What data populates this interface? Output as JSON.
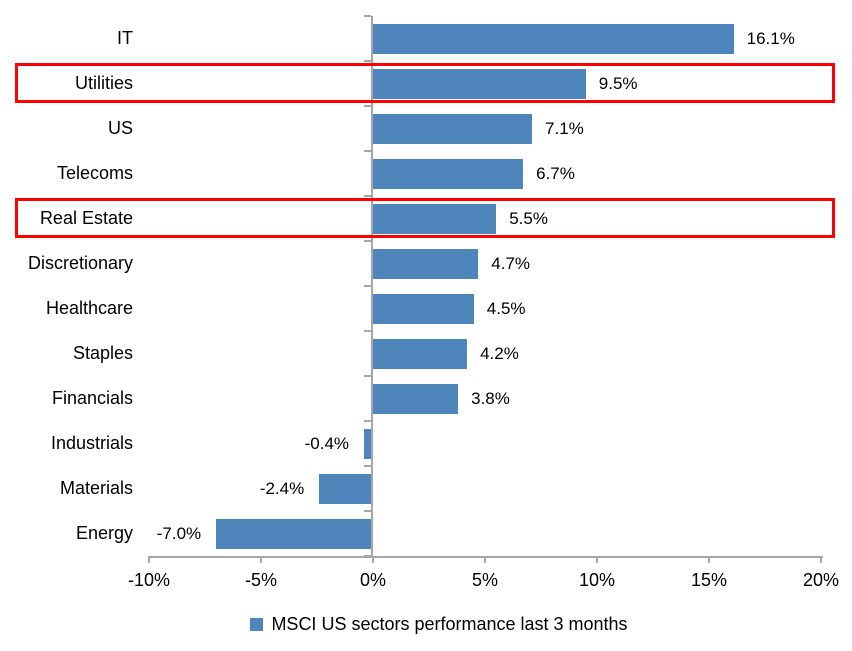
{
  "chart_data": {
    "type": "bar",
    "orientation": "horizontal",
    "title": "",
    "legend": "MSCI US sectors performance last 3 months",
    "legend_position": "bottom",
    "grid": false,
    "categories": [
      "IT",
      "Utilities",
      "US",
      "Telecoms",
      "Real Estate",
      "Discretionary",
      "Healthcare",
      "Staples",
      "Financials",
      "Industrials",
      "Materials",
      "Energy"
    ],
    "values": [
      16.1,
      9.5,
      7.1,
      6.7,
      5.5,
      4.7,
      4.5,
      4.2,
      3.8,
      -0.4,
      -2.4,
      -7.0
    ],
    "value_labels": [
      "16.1%",
      "9.5%",
      "7.1%",
      "6.7%",
      "5.5%",
      "4.7%",
      "4.5%",
      "4.2%",
      "3.8%",
      "-0.4%",
      "-2.4%",
      "-7.0%"
    ],
    "highlighted_categories": [
      "Utilities",
      "Real Estate"
    ],
    "xlim": [
      -10,
      20
    ],
    "x_tick_step": 5,
    "x_tick_labels": [
      "-10%",
      "-5%",
      "0%",
      "5%",
      "10%",
      "15%",
      "20%"
    ],
    "bar_color": "#4E86BC",
    "highlight_color": "#FF0000",
    "axis_color": "#A6A6A6",
    "text_color": "#000000"
  }
}
